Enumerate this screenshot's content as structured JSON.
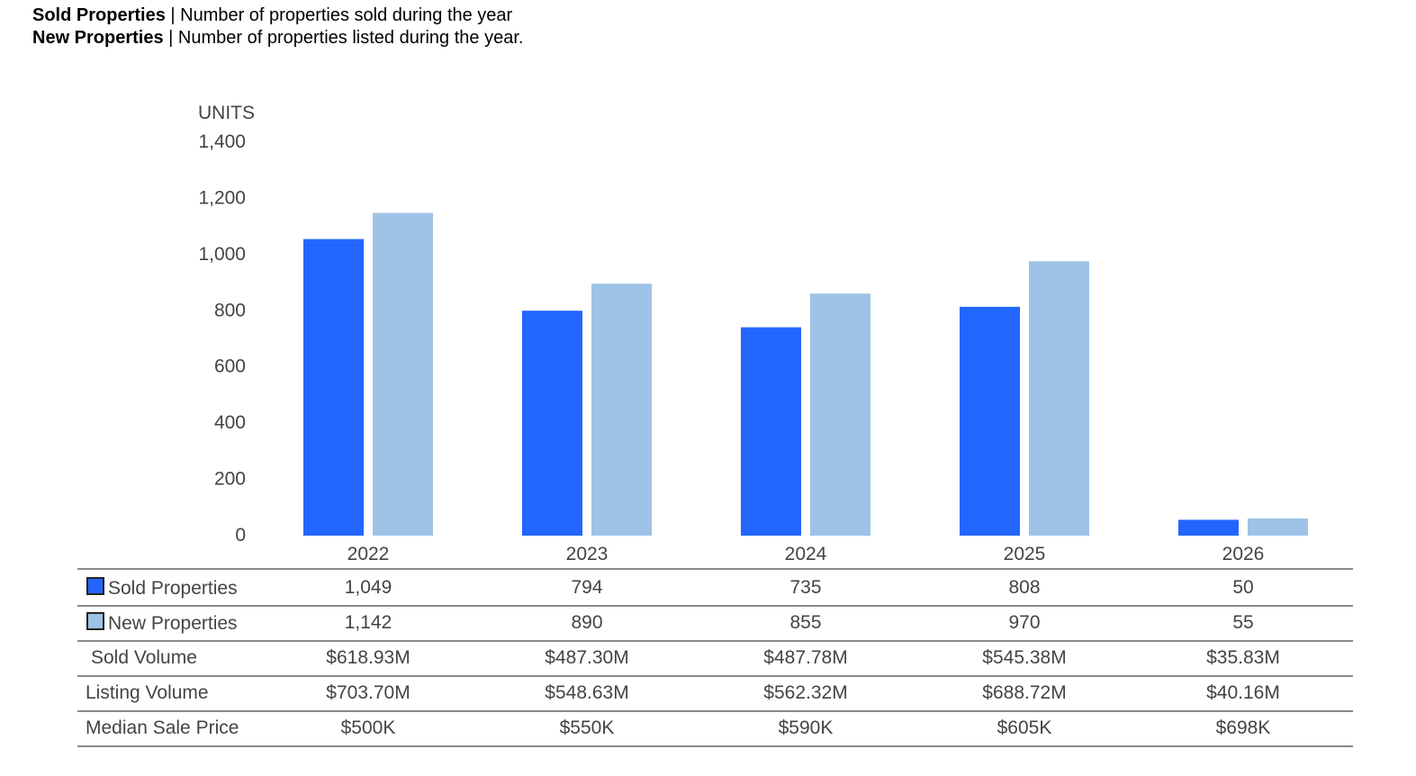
{
  "header": {
    "line1_bold": "Sold Properties",
    "line1_rest": " | Number of properties sold during the year",
    "line2_bold": "New Properties",
    "line2_rest": " | Number of properties listed during the year."
  },
  "chart_data": {
    "type": "bar",
    "ylabel": "UNITS",
    "ylim": [
      0,
      1400
    ],
    "yticks": [
      0,
      200,
      400,
      600,
      800,
      1000,
      1200,
      1400
    ],
    "ytick_labels": [
      "0",
      "200",
      "400",
      "600",
      "800",
      "1,000",
      "1,200",
      "1,400"
    ],
    "categories": [
      "2022",
      "2023",
      "2024",
      "2025",
      "2026"
    ],
    "series": [
      {
        "name": "Sold Properties",
        "color": "#2266ff",
        "values": [
          1049,
          794,
          735,
          808,
          50
        ],
        "labels": [
          "1,049",
          "794",
          "735",
          "808",
          "50"
        ]
      },
      {
        "name": "New Properties",
        "color": "#9dc3e6",
        "values": [
          1142,
          890,
          855,
          970,
          55
        ],
        "labels": [
          "1,142",
          "890",
          "855",
          "970",
          "55"
        ]
      }
    ],
    "legend": "table-below"
  },
  "table": {
    "rows": [
      {
        "label": "Sold Volume",
        "values": [
          "$618.93M",
          "$487.30M",
          "$487.78M",
          "$545.38M",
          "$35.83M"
        ]
      },
      {
        "label": "Listing Volume",
        "values": [
          "$703.70M",
          "$548.63M",
          "$562.32M",
          "$688.72M",
          "$40.16M"
        ]
      },
      {
        "label": "Median Sale Price",
        "values": [
          "$500K",
          "$550K",
          "$590K",
          "$605K",
          "$698K"
        ]
      }
    ]
  }
}
